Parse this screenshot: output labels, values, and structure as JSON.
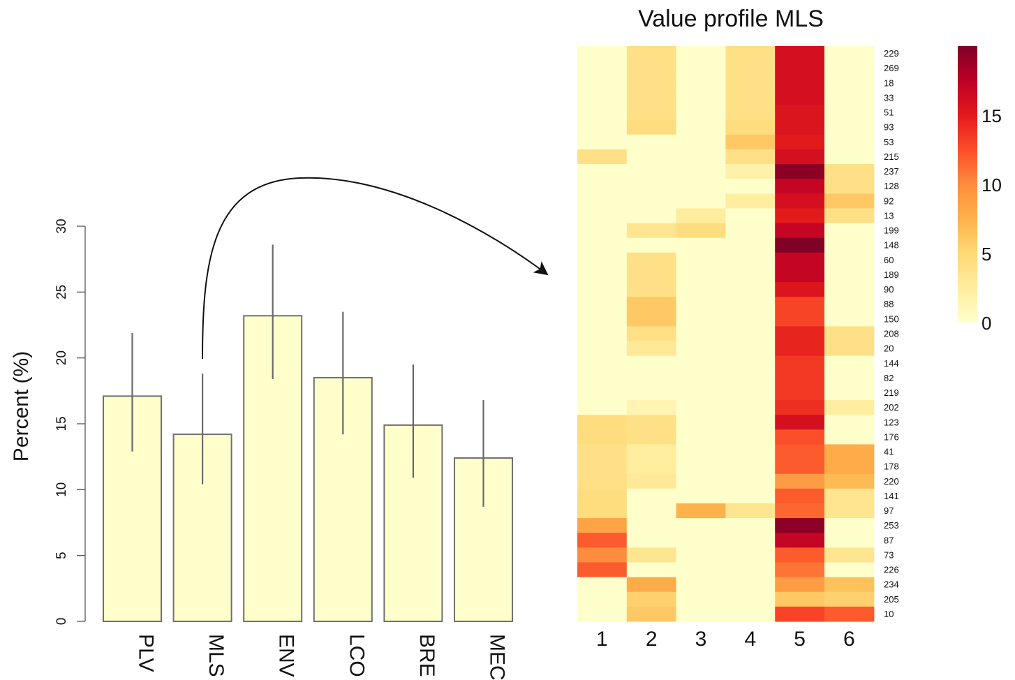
{
  "chart_data": [
    {
      "type": "bar",
      "ylabel": "Percent (%)",
      "xlabel": "",
      "title": "",
      "categories": [
        "PLV",
        "MLS",
        "ENV",
        "LCO",
        "BRE",
        "MEC"
      ],
      "values": [
        17.1,
        14.2,
        23.2,
        18.5,
        14.9,
        12.4
      ],
      "error_bars": [
        [
          12.9,
          21.9
        ],
        [
          10.4,
          18.8
        ],
        [
          18.4,
          28.6
        ],
        [
          14.2,
          23.5
        ],
        [
          10.9,
          19.5
        ],
        [
          8.7,
          16.8
        ]
      ],
      "ylim": [
        0,
        30
      ],
      "yticks": [
        "0",
        "5",
        "10",
        "15",
        "20",
        "25",
        "30"
      ],
      "bar_color": "#ffffcc",
      "bar_edge_color": "#707070",
      "grid": false,
      "annotation": "curved arrow from the MLS bar to the heatmap"
    },
    {
      "type": "heatmap",
      "title": "Value profile MLS",
      "columns": [
        "1",
        "2",
        "3",
        "4",
        "5",
        "6"
      ],
      "rows": [
        "229",
        "269",
        "18",
        "33",
        "51",
        "93",
        "53",
        "215",
        "237",
        "128",
        "92",
        "13",
        "199",
        "148",
        "60",
        "189",
        "90",
        "88",
        "150",
        "208",
        "20",
        "144",
        "82",
        "219",
        "202",
        "123",
        "176",
        "41",
        "178",
        "220",
        "141",
        "97",
        "253",
        "87",
        "73",
        "226",
        "234",
        "205",
        "10"
      ],
      "values": [
        [
          0,
          4,
          0,
          4,
          16,
          0
        ],
        [
          0,
          4,
          0,
          4,
          16,
          0
        ],
        [
          0,
          4,
          0,
          4,
          16,
          0
        ],
        [
          0,
          4,
          0,
          4,
          16,
          0
        ],
        [
          0,
          4,
          0,
          4,
          15.5,
          0
        ],
        [
          0,
          4.5,
          0,
          4.5,
          15.5,
          0
        ],
        [
          0,
          0,
          0,
          6,
          15,
          0
        ],
        [
          4,
          0,
          0,
          4,
          16,
          0
        ],
        [
          0,
          0,
          0,
          2,
          19.5,
          4
        ],
        [
          0,
          0,
          0,
          0,
          17,
          4
        ],
        [
          0,
          0,
          0,
          2.5,
          16,
          6
        ],
        [
          0,
          0,
          2.5,
          0,
          15,
          4
        ],
        [
          0,
          3.5,
          4.5,
          0,
          17,
          0
        ],
        [
          0,
          0,
          0,
          0,
          20,
          0
        ],
        [
          0,
          4,
          0,
          0,
          17,
          0
        ],
        [
          0,
          4,
          0,
          0,
          17,
          0
        ],
        [
          0,
          4,
          0,
          0,
          15.5,
          0
        ],
        [
          0,
          6,
          0,
          0,
          13,
          0
        ],
        [
          0,
          6,
          0,
          0,
          13,
          0
        ],
        [
          0,
          4,
          0,
          0,
          14.5,
          4
        ],
        [
          0,
          3,
          0,
          0,
          14.5,
          4
        ],
        [
          0,
          0,
          0,
          0,
          13.5,
          0
        ],
        [
          0,
          0,
          0,
          0,
          13.5,
          0
        ],
        [
          0,
          0,
          0,
          0,
          13.5,
          0
        ],
        [
          0,
          1.5,
          0,
          0,
          14,
          2.5
        ],
        [
          4.5,
          4,
          0,
          0,
          16,
          0
        ],
        [
          4.5,
          4,
          0,
          0,
          12.5,
          0
        ],
        [
          4,
          2.5,
          0,
          0,
          12,
          8
        ],
        [
          4,
          2.5,
          0,
          0,
          12,
          8
        ],
        [
          4,
          3,
          0,
          0,
          9,
          7
        ],
        [
          4.5,
          0,
          0,
          0,
          12,
          3.5
        ],
        [
          4.5,
          0,
          7.5,
          3.5,
          11.5,
          3.5
        ],
        [
          8.5,
          0,
          0,
          0,
          19.5,
          0
        ],
        [
          12,
          0,
          0,
          0,
          17,
          0
        ],
        [
          10,
          3.5,
          0,
          0,
          12,
          3.5
        ],
        [
          12,
          0,
          0,
          0,
          11,
          0
        ],
        [
          0,
          8,
          0,
          0,
          9,
          6.5
        ],
        [
          0,
          5.5,
          0,
          0,
          6,
          5.5
        ],
        [
          0,
          6,
          0,
          0,
          13,
          12
        ]
      ],
      "colorbar": {
        "ticks": [
          "0",
          "5",
          "10",
          "15"
        ],
        "min": 0,
        "max": 20
      },
      "colormap": [
        "#ffffcc",
        "#ffeda0",
        "#fed976",
        "#feb24c",
        "#fd8d3c",
        "#fc4e2a",
        "#e31a1c",
        "#bd0026",
        "#800026"
      ]
    }
  ]
}
